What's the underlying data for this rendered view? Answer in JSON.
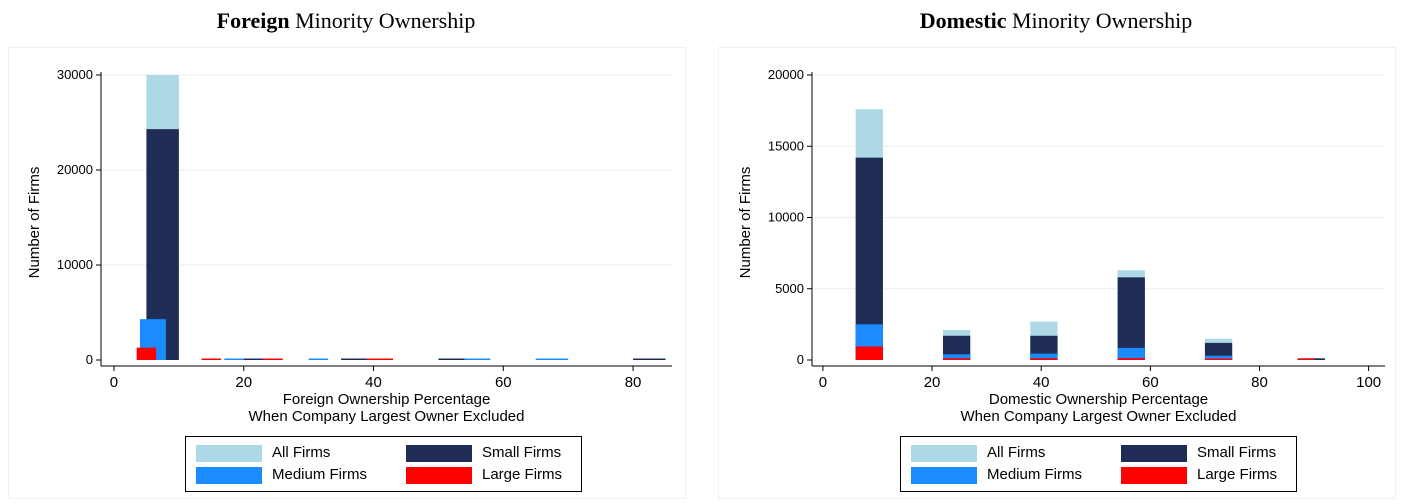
{
  "chart_data": [
    {
      "type": "bar",
      "title_bold": "Foreign",
      "title_rest": " Minority Ownership",
      "xlabel_line1": "Foreign Ownership Percentage",
      "xlabel_line2": "When Company Largest Owner Excluded",
      "ylabel": "Number of Firms",
      "xlim": [
        -2,
        86
      ],
      "ylim": [
        0,
        30000
      ],
      "xticks": [
        0,
        20,
        40,
        60,
        80
      ],
      "yticks": [
        0,
        10000,
        20000,
        30000
      ],
      "grid": true,
      "bars": [
        {
          "series": "All Firms",
          "x0": 5,
          "x1": 10,
          "value": 30000
        },
        {
          "series": "Small Firms",
          "x0": 5,
          "x1": 10,
          "value": 24300
        },
        {
          "series": "Medium Firms",
          "x0": 4,
          "x1": 8,
          "value": 4300
        },
        {
          "series": "Large Firms",
          "x0": 3.5,
          "x1": 6.5,
          "value": 1300
        },
        {
          "series": "Large Firms",
          "x0": 13.5,
          "x1": 16.5,
          "value": 40
        },
        {
          "series": "Medium Firms",
          "x0": 17,
          "x1": 20,
          "value": 50
        },
        {
          "series": "Small Firms",
          "x0": 20,
          "x1": 25,
          "value": 120
        },
        {
          "series": "Large Firms",
          "x0": 23,
          "x1": 26,
          "value": 30
        },
        {
          "series": "Medium Firms",
          "x0": 30,
          "x1": 33,
          "value": 40
        },
        {
          "series": "Small Firms",
          "x0": 35,
          "x1": 40,
          "value": 90
        },
        {
          "series": "Large Firms",
          "x0": 39,
          "x1": 43,
          "value": 30
        },
        {
          "series": "Small Firms",
          "x0": 50,
          "x1": 55,
          "value": 130
        },
        {
          "series": "Medium Firms",
          "x0": 54,
          "x1": 58,
          "value": 40
        },
        {
          "series": "Medium Firms",
          "x0": 65,
          "x1": 70,
          "value": 40
        },
        {
          "series": "Small Firms",
          "x0": 80,
          "x1": 85,
          "value": 50
        }
      ]
    },
    {
      "type": "bar",
      "title_bold": "Domestic",
      "title_rest": " Minority Ownership",
      "xlabel_line1": "Domestic Ownership Percentage",
      "xlabel_line2": "When Company Largest Owner Excluded",
      "ylabel": "Number of Firms",
      "xlim": [
        -2,
        103
      ],
      "ylim": [
        0,
        20000
      ],
      "xticks": [
        0,
        20,
        40,
        60,
        80,
        100
      ],
      "yticks": [
        0,
        5000,
        10000,
        15000,
        20000
      ],
      "grid": true,
      "bars": [
        {
          "series": "All Firms",
          "x0": 6,
          "x1": 11,
          "value": 17600
        },
        {
          "series": "Small Firms",
          "x0": 6,
          "x1": 11,
          "value": 14200
        },
        {
          "series": "Medium Firms",
          "x0": 6,
          "x1": 11,
          "value": 2500
        },
        {
          "series": "Large Firms",
          "x0": 6,
          "x1": 11,
          "value": 950
        },
        {
          "series": "All Firms",
          "x0": 22,
          "x1": 27,
          "value": 2100
        },
        {
          "series": "Small Firms",
          "x0": 22,
          "x1": 27,
          "value": 1700
        },
        {
          "series": "Medium Firms",
          "x0": 22,
          "x1": 27,
          "value": 400
        },
        {
          "series": "Large Firms",
          "x0": 22,
          "x1": 27,
          "value": 120
        },
        {
          "series": "All Firms",
          "x0": 38,
          "x1": 43,
          "value": 2700
        },
        {
          "series": "Small Firms",
          "x0": 38,
          "x1": 43,
          "value": 1700
        },
        {
          "series": "Medium Firms",
          "x0": 38,
          "x1": 43,
          "value": 450
        },
        {
          "series": "Large Firms",
          "x0": 38,
          "x1": 43,
          "value": 120
        },
        {
          "series": "All Firms",
          "x0": 54,
          "x1": 59,
          "value": 6300
        },
        {
          "series": "Small Firms",
          "x0": 54,
          "x1": 59,
          "value": 5800
        },
        {
          "series": "Medium Firms",
          "x0": 54,
          "x1": 59,
          "value": 850
        },
        {
          "series": "Large Firms",
          "x0": 54,
          "x1": 59,
          "value": 130
        },
        {
          "series": "All Firms",
          "x0": 70,
          "x1": 75,
          "value": 1500
        },
        {
          "series": "Small Firms",
          "x0": 70,
          "x1": 75,
          "value": 1200
        },
        {
          "series": "Medium Firms",
          "x0": 70,
          "x1": 75,
          "value": 300
        },
        {
          "series": "Large Firms",
          "x0": 70,
          "x1": 75,
          "value": 60
        },
        {
          "series": "Small Firms",
          "x0": 87,
          "x1": 92,
          "value": 120
        },
        {
          "series": "Large Firms",
          "x0": 87,
          "x1": 90,
          "value": 60
        }
      ]
    }
  ],
  "legend": {
    "items": [
      {
        "label": "All Firms",
        "color": "#add8e6"
      },
      {
        "label": "Small Firms",
        "color": "#1f2d56"
      },
      {
        "label": "Medium Firms",
        "color": "#1a8cff"
      },
      {
        "label": "Large Firms",
        "color": "#ff0000"
      }
    ]
  }
}
